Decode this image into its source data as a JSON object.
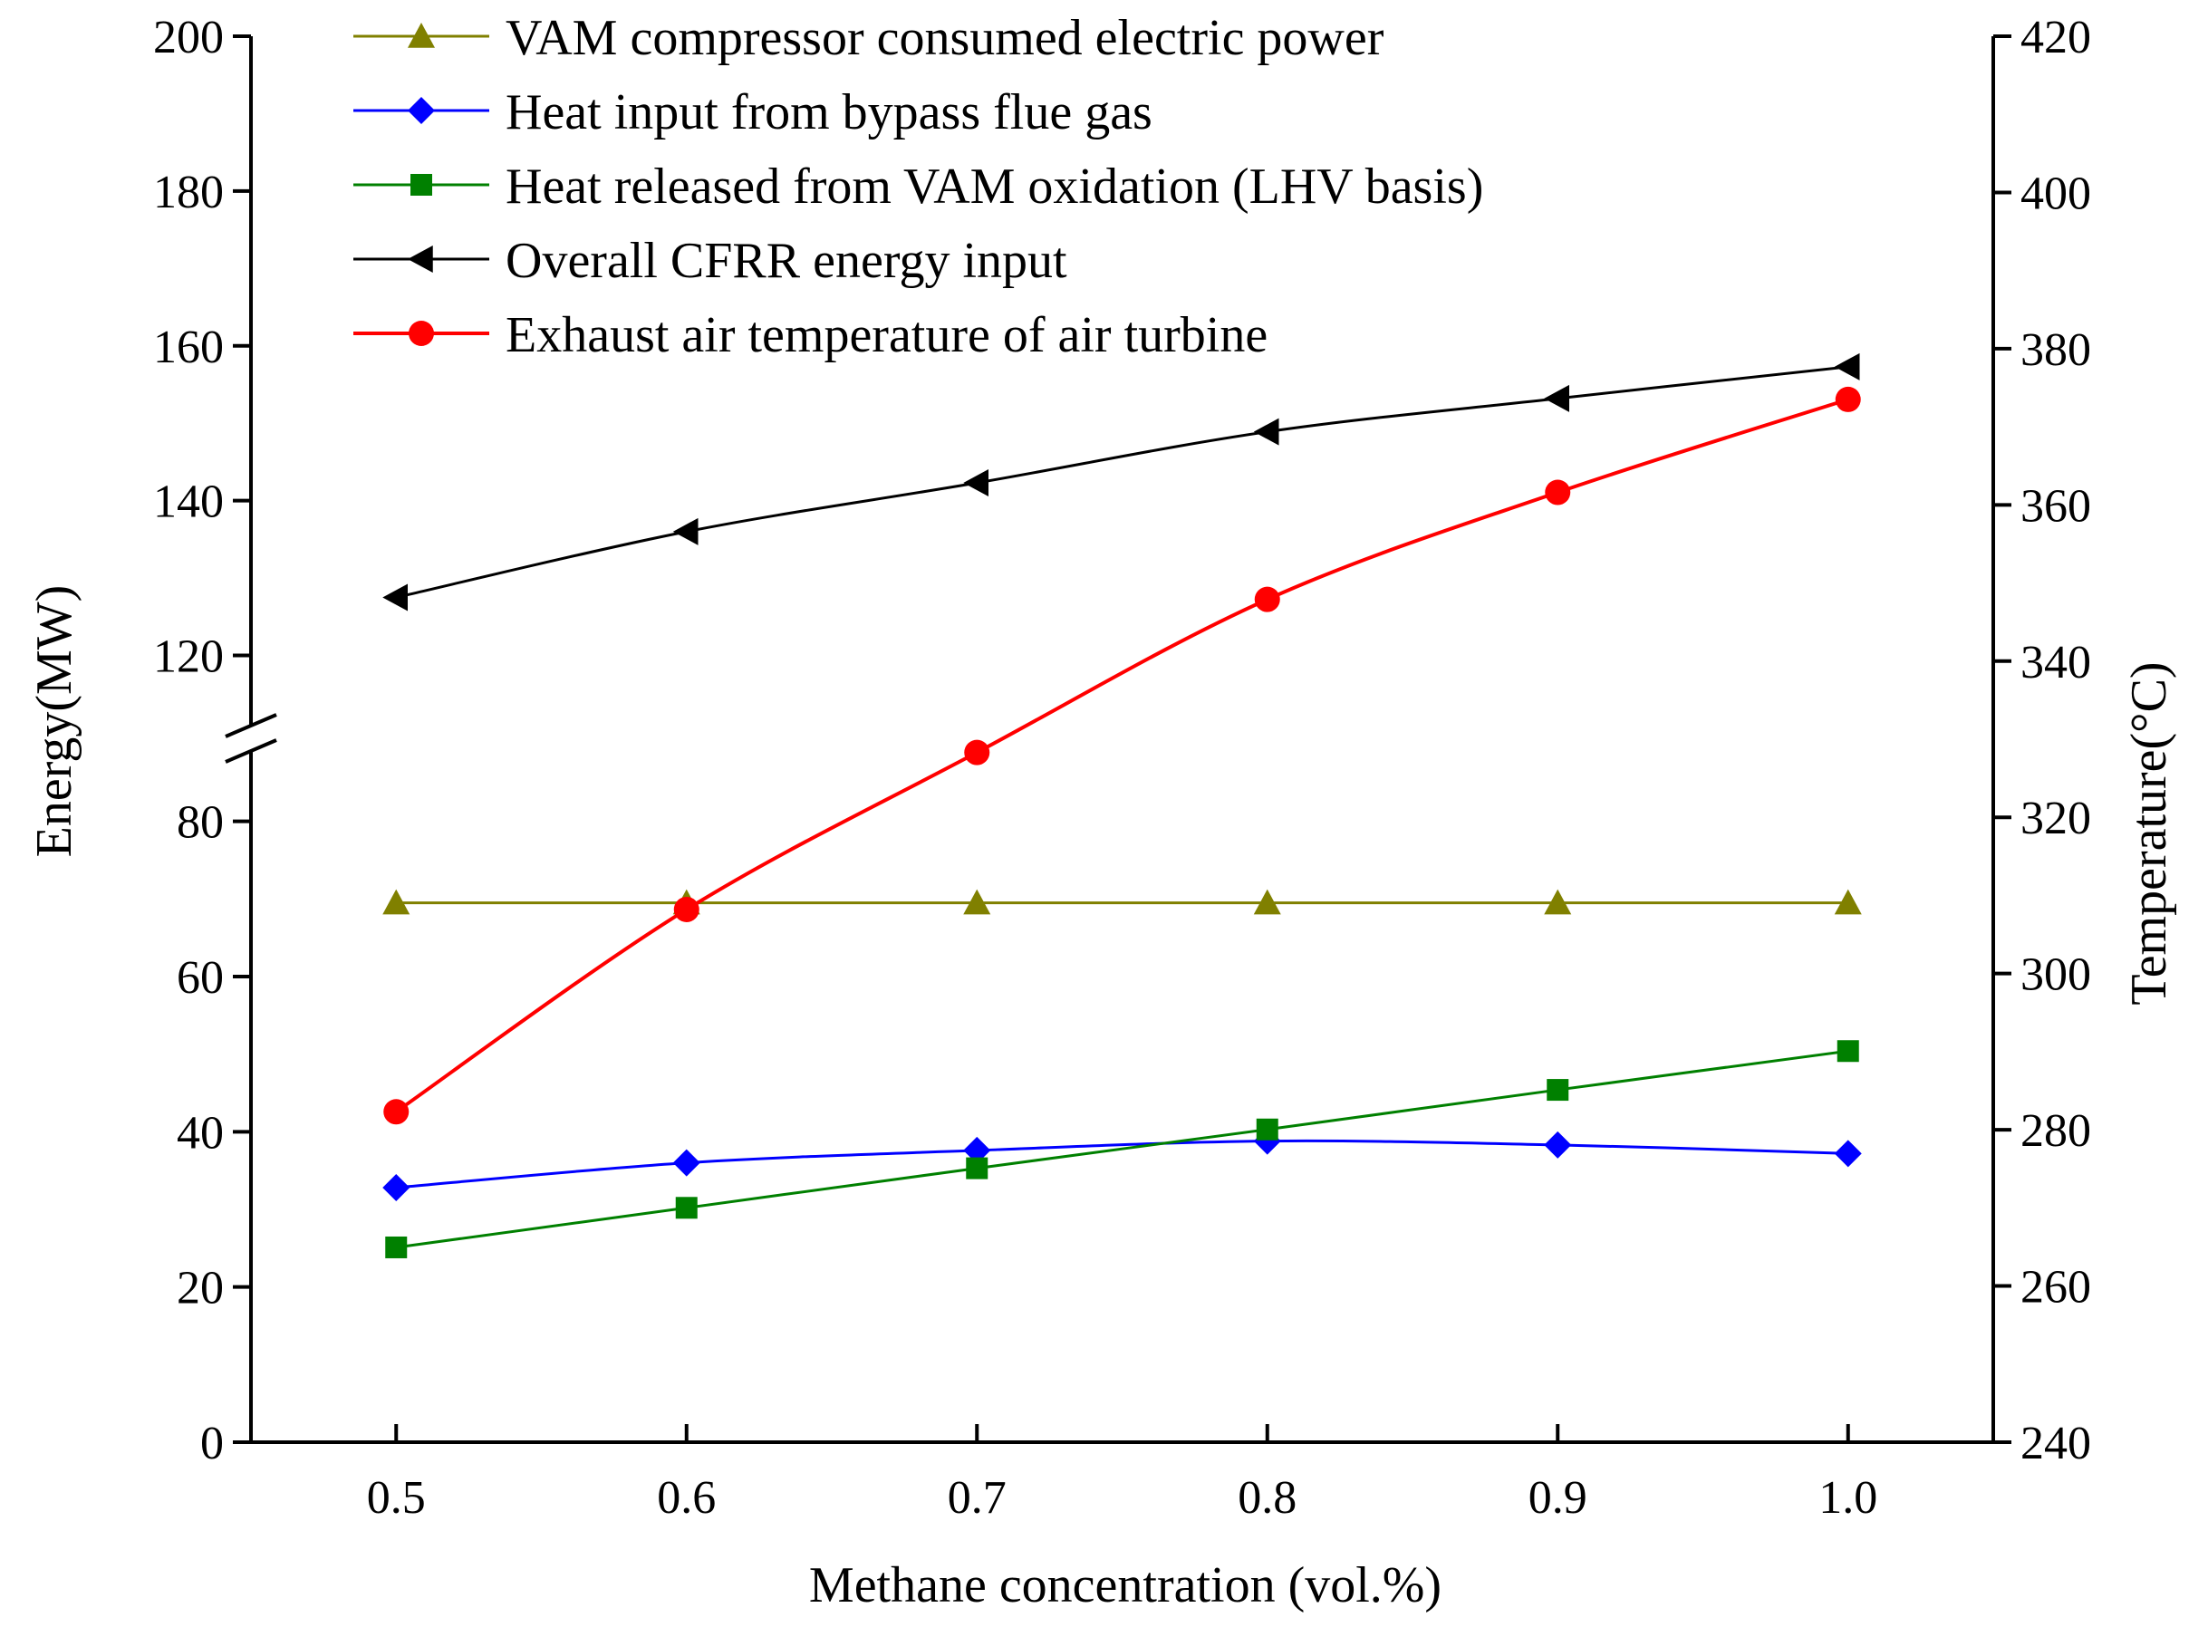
{
  "chart_data": {
    "type": "line",
    "title": "",
    "xlabel": "Methane concentration (vol.%)",
    "ylabel": "Energy(MW)",
    "y2label": "Temperature(°C)",
    "x": [
      0.5,
      0.6,
      0.7,
      0.8,
      0.9,
      1.0
    ],
    "xlim": [
      0.45,
      1.05
    ],
    "xticks": [
      "0.5",
      "0.6",
      "0.7",
      "0.8",
      "0.9",
      "1.0"
    ],
    "ylim": [
      0,
      200
    ],
    "y_axis_break": [
      90,
      110
    ],
    "yticks_lower": [
      "0",
      "20",
      "40",
      "60",
      "80"
    ],
    "yticks_upper": [
      "120",
      "140",
      "160",
      "180",
      "200"
    ],
    "y2lim": [
      240,
      420
    ],
    "y2ticks": [
      "240",
      "260",
      "280",
      "300",
      "320",
      "340",
      "360",
      "380",
      "400",
      "420"
    ],
    "grid": false,
    "legend_position": "top-left",
    "series": [
      {
        "name": "VAM compressor consumed electric power",
        "axis": "left",
        "marker": "triangle-up",
        "color": "#808000",
        "stroke_width": 3,
        "values": [
          69.5,
          69.5,
          69.5,
          69.5,
          69.5,
          69.5
        ]
      },
      {
        "name": "Heat input from bypass flue gas",
        "axis": "left",
        "marker": "diamond",
        "color": "#0000ff",
        "stroke_width": 3,
        "values": [
          32.8,
          36.0,
          37.6,
          38.8,
          38.3,
          37.2
        ]
      },
      {
        "name": "Heat released from VAM oxidation (LHV basis)",
        "axis": "left",
        "marker": "square",
        "color": "#008000",
        "stroke_width": 3,
        "values": [
          25.1,
          30.2,
          35.3,
          40.3,
          45.4,
          50.4
        ]
      },
      {
        "name": "Overall CFRR energy input",
        "axis": "left",
        "marker": "triangle-left",
        "color": "#000000",
        "stroke_width": 3,
        "values": [
          127.5,
          136.0,
          142.3,
          148.9,
          153.2,
          157.3
        ]
      },
      {
        "name": "Exhaust air temperature of air turbine",
        "axis": "right",
        "marker": "circle",
        "color": "#ff0000",
        "stroke_width": 4,
        "values": [
          282.3,
          308.2,
          328.3,
          347.9,
          361.6,
          373.5
        ]
      }
    ]
  }
}
